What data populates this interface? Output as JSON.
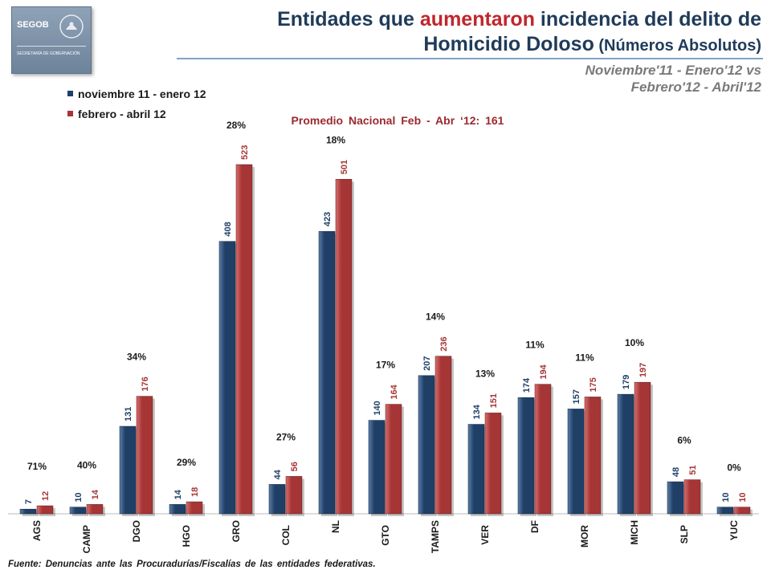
{
  "header": {
    "logo_name": "SEGOB",
    "logo_sub": "SECRETARÍA DE GOBERNACIÓN",
    "title_part1": "Entidades que ",
    "title_highlight": "aumentaron",
    "title_part2": " incidencia del delito de",
    "title_line2_main": "Homicidio Doloso",
    "title_line2_paren": " (Números Absolutos)",
    "subtitle": "Noviembre'11 - Enero'12 vs\nFebrero'12 - Abril'12"
  },
  "source_note": "Fuente: Denuncias ante las Procuradurías/Fiscalías de las entidades federativas.",
  "colors": {
    "series_1": "#1f3f66",
    "series_2": "#a63535",
    "title": "#1f3b5a",
    "highlight": "#c0262d",
    "avg_text": "#9a2a30"
  },
  "chart_data": {
    "type": "bar",
    "title": "Promedio Nacional Feb - Abr ‘12: 161",
    "categories": [
      "AGS",
      "CAMP",
      "DGO",
      "HGO",
      "GRO",
      "COL",
      "NL",
      "GTO",
      "TAMPS",
      "VER",
      "DF",
      "MOR",
      "MICH",
      "SLP",
      "YUC"
    ],
    "series": [
      {
        "name": "noviembre 11 - enero 12",
        "values": [
          7,
          10,
          131,
          14,
          408,
          44,
          423,
          140,
          207,
          134,
          174,
          157,
          179,
          48,
          10
        ]
      },
      {
        "name": "febrero - abril 12",
        "values": [
          12,
          14,
          176,
          18,
          523,
          56,
          501,
          164,
          236,
          151,
          194,
          175,
          197,
          51,
          10
        ]
      }
    ],
    "pct_labels": [
      "71%",
      "40%",
      "34%",
      "29%",
      "28%",
      "27%",
      "18%",
      "17%",
      "14%",
      "13%",
      "11%",
      "11%",
      "10%",
      "6%",
      "0%"
    ],
    "ylim": [
      0,
      523
    ],
    "legend": "top-left",
    "grid": false
  }
}
